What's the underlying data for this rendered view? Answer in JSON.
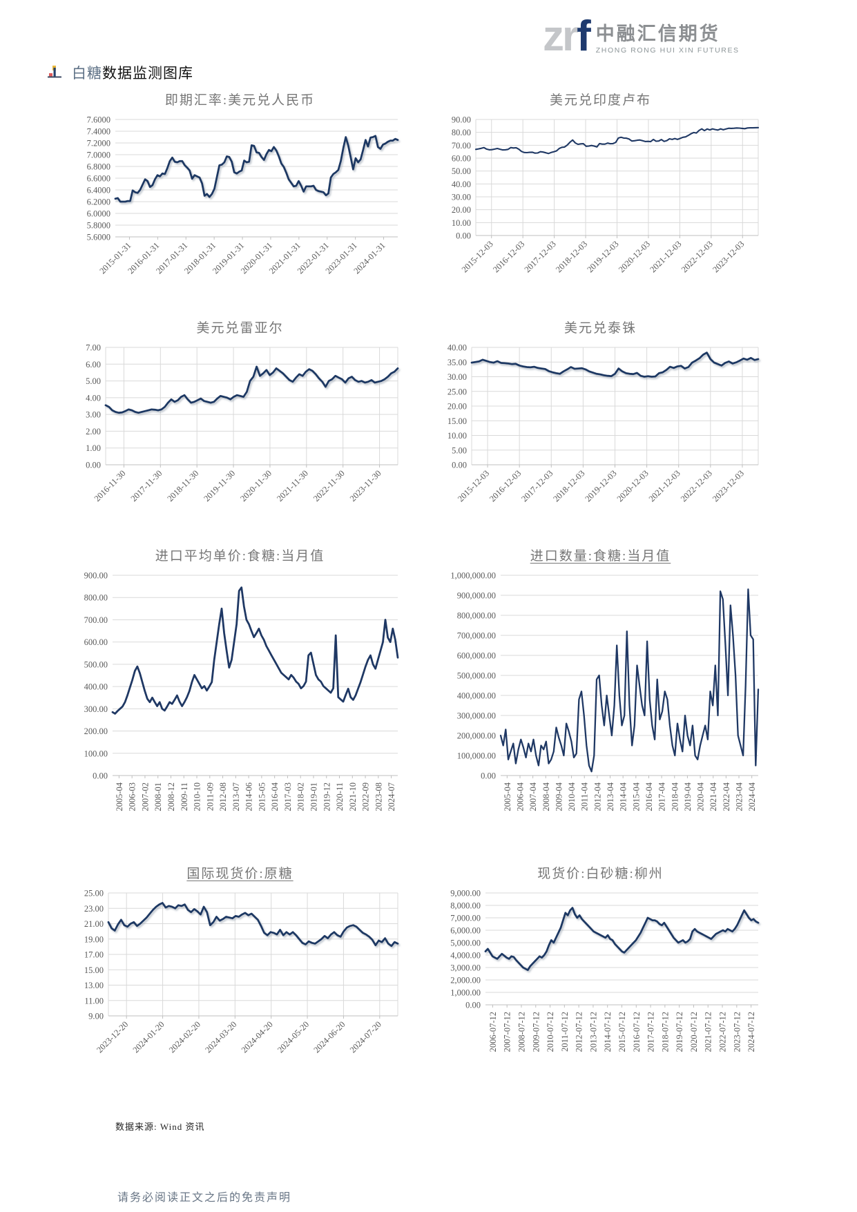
{
  "header": {
    "logo_zr": "zr",
    "logo_f": "f",
    "logo_cn": "中融汇信期货",
    "logo_en": "ZHONG RONG HUI XIN FUTURES"
  },
  "section": {
    "title_highlight": "白糖",
    "title_rest": "数据监测图库"
  },
  "footer": {
    "source": "数据来源: Wind 资讯",
    "disclaimer": "请务必阅读正文之后的免责声明"
  },
  "colors": {
    "line": "#1f3864",
    "grid": "#d9d9d9",
    "axis": "#bfbfbf",
    "tick_text": "#595959",
    "title_text": "#767676"
  },
  "chart_data": [
    {
      "type": "line",
      "title": "即期汇率:美元兑人民币",
      "underline": false,
      "ylim": [
        5.6,
        7.6
      ],
      "ystep": 0.2,
      "decimals": 4,
      "thousands": false,
      "grid_vertical": false,
      "shadow": true,
      "x_rotation": 45,
      "x_labels": [
        "2015-01-31",
        "2016-01-31",
        "2017-01-31",
        "2018-01-31",
        "2019-01-31",
        "2020-01-31",
        "2021-01-31",
        "2022-01-31",
        "2023-01-31",
        "2024-01-31"
      ],
      "values": [
        6.25,
        6.26,
        6.2,
        6.2,
        6.2,
        6.21,
        6.21,
        6.39,
        6.36,
        6.35,
        6.4,
        6.49,
        6.58,
        6.55,
        6.45,
        6.48,
        6.58,
        6.65,
        6.63,
        6.68,
        6.67,
        6.77,
        6.89,
        6.95,
        6.88,
        6.87,
        6.89,
        6.89,
        6.82,
        6.78,
        6.73,
        6.59,
        6.65,
        6.63,
        6.61,
        6.51,
        6.3,
        6.33,
        6.28,
        6.33,
        6.42,
        6.62,
        6.82,
        6.83,
        6.87,
        6.97,
        6.96,
        6.88,
        6.7,
        6.68,
        6.71,
        6.73,
        6.9,
        6.87,
        6.88,
        7.16,
        7.15,
        7.04,
        7.03,
        6.96,
        6.91,
        7.01,
        7.08,
        7.06,
        7.13,
        7.07,
        6.97,
        6.85,
        6.79,
        6.69,
        6.58,
        6.52,
        6.46,
        6.47,
        6.55,
        6.47,
        6.37,
        6.46,
        6.46,
        6.46,
        6.47,
        6.4,
        6.38,
        6.37,
        6.36,
        6.31,
        6.34,
        6.61,
        6.67,
        6.7,
        6.74,
        6.89,
        7.11,
        7.3,
        7.16,
        6.96,
        6.75,
        6.94,
        6.87,
        6.92,
        7.08,
        7.25,
        7.14,
        7.29,
        7.3,
        7.32,
        7.13,
        7.1,
        7.17,
        7.19,
        7.22,
        7.24,
        7.24,
        7.27,
        7.25
      ]
    },
    {
      "type": "line",
      "title": "美元兑印度卢布",
      "underline": false,
      "ylim": [
        0,
        90
      ],
      "ystep": 10,
      "decimals": 2,
      "thousands": false,
      "grid_vertical": true,
      "shadow": false,
      "x_rotation": 45,
      "x_labels": [
        "2015-12-03",
        "2016-12-03",
        "2017-12-03",
        "2018-12-03",
        "2019-12-03",
        "2020-12-03",
        "2021-12-03",
        "2022-12-03",
        "2023-12-03"
      ],
      "values": [
        66.8,
        67.2,
        67.6,
        68.2,
        67.0,
        66.5,
        66.6,
        67.0,
        67.5,
        66.9,
        66.4,
        66.5,
        66.8,
        68.2,
        67.9,
        68.1,
        66.9,
        65.2,
        64.4,
        64.3,
        64.5,
        64.6,
        63.9,
        64.0,
        65.0,
        64.7,
        64.2,
        63.6,
        64.4,
        65.0,
        65.6,
        67.5,
        68.4,
        68.6,
        70.1,
        72.3,
        74.1,
        71.8,
        70.7,
        71.1,
        71.2,
        69.2,
        69.4,
        69.8,
        69.4,
        68.7,
        71.3,
        70.9,
        70.9,
        71.7,
        71.2,
        71.3,
        72.2,
        75.6,
        76.2,
        75.6,
        75.5,
        74.8,
        73.3,
        73.5,
        73.9,
        74.1,
        73.5,
        72.9,
        73.0,
        72.8,
        74.5,
        73.1,
        73.3,
        74.4,
        73.0,
        73.6,
        75.0,
        74.5,
        75.2,
        74.5,
        75.3,
        76.2,
        76.5,
        77.6,
        78.9,
        79.9,
        79.5,
        81.5,
        82.7,
        81.4,
        82.6,
        81.9,
        82.7,
        82.2,
        81.8,
        82.7,
        82.0,
        82.6,
        83.2,
        83.1,
        83.2,
        83.4,
        83.3,
        83.1,
        82.9,
        83.4,
        83.5,
        83.5,
        83.6,
        83.7
      ]
    },
    {
      "type": "line",
      "title": "美元兑雷亚尔",
      "underline": false,
      "ylim": [
        0,
        7
      ],
      "ystep": 1,
      "decimals": 2,
      "thousands": false,
      "grid_vertical": true,
      "shadow": true,
      "x_rotation": 45,
      "x_labels": [
        "2016-11-30",
        "2017-11-30",
        "2018-11-30",
        "2019-11-30",
        "2020-11-30",
        "2021-11-30",
        "2022-11-30",
        "2023-11-30"
      ],
      "values": [
        3.55,
        3.45,
        3.25,
        3.15,
        3.1,
        3.12,
        3.2,
        3.3,
        3.25,
        3.15,
        3.1,
        3.15,
        3.2,
        3.25,
        3.3,
        3.28,
        3.25,
        3.3,
        3.45,
        3.7,
        3.9,
        3.75,
        3.85,
        4.05,
        4.15,
        3.9,
        3.7,
        3.75,
        3.85,
        3.95,
        3.8,
        3.75,
        3.7,
        3.75,
        3.95,
        4.1,
        4.05,
        4.0,
        3.9,
        4.05,
        4.15,
        4.1,
        4.05,
        4.35,
        5.0,
        5.25,
        5.85,
        5.3,
        5.45,
        5.65,
        5.35,
        5.5,
        5.75,
        5.6,
        5.45,
        5.25,
        5.05,
        4.95,
        5.2,
        5.4,
        5.3,
        5.55,
        5.7,
        5.6,
        5.4,
        5.15,
        4.95,
        4.65,
        5.0,
        5.1,
        5.3,
        5.2,
        5.1,
        4.9,
        5.15,
        5.25,
        5.05,
        4.95,
        5.0,
        4.9,
        4.95,
        5.05,
        4.9,
        4.95,
        5.0,
        5.1,
        5.25,
        5.45,
        5.55,
        5.75
      ]
    },
    {
      "type": "line",
      "title": "美元兑泰铢",
      "underline": false,
      "ylim": [
        0,
        40
      ],
      "ystep": 5,
      "decimals": 2,
      "thousands": false,
      "grid_vertical": true,
      "shadow": true,
      "x_rotation": 45,
      "x_labels": [
        "2015-12-03",
        "2016-12-03",
        "2017-12-03",
        "2018-12-03",
        "2019-12-03",
        "2020-12-03",
        "2021-12-03",
        "2022-12-03",
        "2023-12-03"
      ],
      "values": [
        34.8,
        35.0,
        35.2,
        35.8,
        35.4,
        35.0,
        34.8,
        35.3,
        34.7,
        34.6,
        34.5,
        34.3,
        34.4,
        33.8,
        33.5,
        33.3,
        33.2,
        33.4,
        33.0,
        32.8,
        32.6,
        31.9,
        31.5,
        31.2,
        31.0,
        31.8,
        32.5,
        33.3,
        32.7,
        32.8,
        32.9,
        32.5,
        31.8,
        31.4,
        31.0,
        30.8,
        30.5,
        30.3,
        30.2,
        31.0,
        32.8,
        31.8,
        31.2,
        31.0,
        30.9,
        31.3,
        30.3,
        30.0,
        30.2,
        30.0,
        30.1,
        31.2,
        31.5,
        32.3,
        33.4,
        33.0,
        33.5,
        33.7,
        32.8,
        33.3,
        34.8,
        35.5,
        36.3,
        37.5,
        38.2,
        36.0,
        34.8,
        34.3,
        33.8,
        34.7,
        35.2,
        34.5,
        34.9,
        35.5,
        36.2,
        35.8,
        36.4,
        35.7,
        36.0
      ]
    },
    {
      "type": "line",
      "title": "进口平均单价:食糖:当月值",
      "underline": false,
      "ylim": [
        0,
        900
      ],
      "ystep": 100,
      "decimals": 2,
      "thousands": false,
      "grid_vertical": false,
      "shadow": false,
      "x_rotation": 90,
      "x_labels": [
        "2005-04",
        "2006-03",
        "2007-02",
        "2008-01",
        "2008-12",
        "2009-11",
        "2010-10",
        "2011-09",
        "2012-08",
        "2013-07",
        "2014-06",
        "2015-05",
        "2016-04",
        "2017-03",
        "2018-02",
        "2019-01",
        "2019-12",
        "2020-11",
        "2021-10",
        "2022-09",
        "2023-08",
        "2024-07"
      ],
      "values": [
        285,
        278,
        290,
        300,
        310,
        330,
        360,
        395,
        430,
        470,
        490,
        460,
        420,
        380,
        345,
        330,
        350,
        330,
        312,
        330,
        300,
        292,
        310,
        330,
        322,
        340,
        360,
        332,
        312,
        330,
        352,
        380,
        420,
        452,
        432,
        412,
        392,
        402,
        382,
        400,
        420,
        520,
        600,
        680,
        750,
        640,
        560,
        485,
        520,
        600,
        680,
        830,
        845,
        760,
        700,
        680,
        650,
        622,
        640,
        660,
        630,
        610,
        582,
        562,
        542,
        522,
        502,
        482,
        462,
        452,
        442,
        432,
        452,
        440,
        422,
        412,
        392,
        402,
        422,
        540,
        552,
        502,
        452,
        432,
        422,
        402,
        392,
        382,
        372,
        392,
        630,
        352,
        342,
        332,
        362,
        390,
        352,
        340,
        360,
        390,
        420,
        455,
        490,
        520,
        540,
        500,
        480,
        520,
        560,
        600,
        700,
        620,
        600,
        660,
        610,
        530
      ]
    },
    {
      "type": "line",
      "title": "进口数量:食糖:当月值",
      "underline": true,
      "ylim": [
        0,
        1000000
      ],
      "ystep": 100000,
      "decimals": 2,
      "thousands": true,
      "grid_vertical": false,
      "shadow": false,
      "x_rotation": 90,
      "x_labels": [
        "2005-04",
        "2006-04",
        "2007-04",
        "2008-04",
        "2009-04",
        "2010-04",
        "2011-04",
        "2012-04",
        "2013-04",
        "2014-04",
        "2015-04",
        "2016-04",
        "2017-04",
        "2018-04",
        "2019-04",
        "2020-04",
        "2021-04",
        "2022-04",
        "2023-04",
        "2024-04"
      ],
      "values": [
        200000,
        150000,
        230000,
        80000,
        120000,
        160000,
        60000,
        130000,
        180000,
        140000,
        90000,
        160000,
        120000,
        180000,
        100000,
        50000,
        150000,
        130000,
        170000,
        60000,
        80000,
        120000,
        240000,
        190000,
        150000,
        100000,
        260000,
        220000,
        170000,
        90000,
        110000,
        380000,
        420000,
        300000,
        150000,
        50000,
        20000,
        100000,
        480000,
        500000,
        350000,
        250000,
        400000,
        300000,
        200000,
        350000,
        650000,
        400000,
        250000,
        300000,
        720000,
        350000,
        150000,
        250000,
        550000,
        450000,
        350000,
        300000,
        670000,
        380000,
        250000,
        180000,
        480000,
        280000,
        320000,
        420000,
        380000,
        250000,
        150000,
        100000,
        260000,
        180000,
        120000,
        300000,
        200000,
        150000,
        250000,
        100000,
        80000,
        150000,
        200000,
        250000,
        180000,
        420000,
        350000,
        550000,
        300000,
        920000,
        880000,
        650000,
        400000,
        850000,
        700000,
        500000,
        200000,
        150000,
        100000,
        450000,
        930000,
        700000,
        680000,
        50000,
        430000
      ]
    },
    {
      "type": "line",
      "title": "国际现货价:原糖",
      "underline": true,
      "ylim": [
        9,
        25
      ],
      "ystep": 2,
      "decimals": 2,
      "thousands": false,
      "grid_vertical": true,
      "shadow": true,
      "x_rotation": 45,
      "x_labels": [
        "2023-12-20",
        "2024-01-20",
        "2024-02-20",
        "2024-03-20",
        "2024-04-20",
        "2024-05-20",
        "2024-06-20",
        "2024-07-20"
      ],
      "values": [
        21.2,
        20.4,
        20.1,
        20.9,
        21.5,
        20.8,
        20.6,
        21.0,
        21.2,
        20.7,
        21.0,
        21.4,
        21.8,
        22.3,
        22.8,
        23.2,
        23.5,
        23.7,
        23.1,
        23.3,
        23.2,
        23.0,
        23.4,
        23.3,
        23.5,
        22.8,
        22.5,
        22.9,
        22.6,
        22.2,
        23.2,
        22.5,
        20.8,
        21.2,
        21.9,
        21.4,
        21.6,
        21.9,
        21.8,
        21.7,
        22.0,
        21.9,
        22.2,
        22.4,
        22.1,
        22.3,
        21.9,
        21.5,
        20.7,
        19.8,
        19.5,
        19.9,
        19.8,
        19.6,
        20.2,
        19.5,
        19.9,
        19.6,
        19.9,
        19.5,
        19.0,
        18.5,
        18.3,
        18.7,
        18.5,
        18.4,
        18.7,
        19.0,
        19.4,
        19.1,
        19.6,
        19.9,
        19.5,
        19.3,
        20.0,
        20.5,
        20.7,
        20.8,
        20.6,
        20.2,
        19.8,
        19.6,
        19.3,
        18.9,
        18.2,
        18.8,
        18.6,
        19.1,
        18.4,
        18.1,
        18.6,
        18.4
      ]
    },
    {
      "type": "line",
      "title": "现货价:白砂糖:柳州",
      "underline": false,
      "ylim": [
        0,
        9000
      ],
      "ystep": 1000,
      "decimals": 2,
      "thousands": true,
      "grid_vertical": false,
      "shadow": true,
      "x_rotation": 90,
      "x_labels": [
        "2006-07-12",
        "2007-07-12",
        "2008-07-12",
        "2009-07-12",
        "2010-07-12",
        "2011-07-12",
        "2012-07-12",
        "2013-07-12",
        "2014-07-12",
        "2015-07-12",
        "2016-07-12",
        "2017-07-12",
        "2018-07-12",
        "2019-07-12",
        "2020-07-12",
        "2021-07-12",
        "2022-07-12",
        "2023-07-12",
        "2024-07-12"
      ],
      "values": [
        4300,
        4500,
        4200,
        3900,
        3800,
        3700,
        3900,
        4100,
        3950,
        3800,
        3700,
        3900,
        3850,
        3600,
        3400,
        3200,
        3000,
        2900,
        2800,
        3100,
        3300,
        3500,
        3700,
        3900,
        3800,
        4000,
        4300,
        4800,
        5200,
        5000,
        5400,
        5800,
        6200,
        6800,
        7400,
        7200,
        7600,
        7800,
        7300,
        7000,
        7200,
        6900,
        6700,
        6500,
        6300,
        6100,
        5900,
        5800,
        5700,
        5600,
        5500,
        5400,
        5600,
        5300,
        5200,
        4900,
        4700,
        4500,
        4300,
        4200,
        4400,
        4600,
        4800,
        5000,
        5200,
        5500,
        5800,
        6200,
        6600,
        7000,
        6900,
        6800,
        6800,
        6700,
        6500,
        6400,
        6600,
        6300,
        6000,
        5700,
        5400,
        5200,
        5000,
        5100,
        5200,
        5000,
        5100,
        5300,
        5900,
        6100,
        5900,
        5800,
        5700,
        5600,
        5500,
        5400,
        5300,
        5500,
        5700,
        5800,
        5900,
        6000,
        5900,
        6100,
        6000,
        5900,
        6100,
        6400,
        6800,
        7200,
        7600,
        7300,
        7000,
        6800,
        6900,
        6700,
        6600
      ]
    }
  ]
}
